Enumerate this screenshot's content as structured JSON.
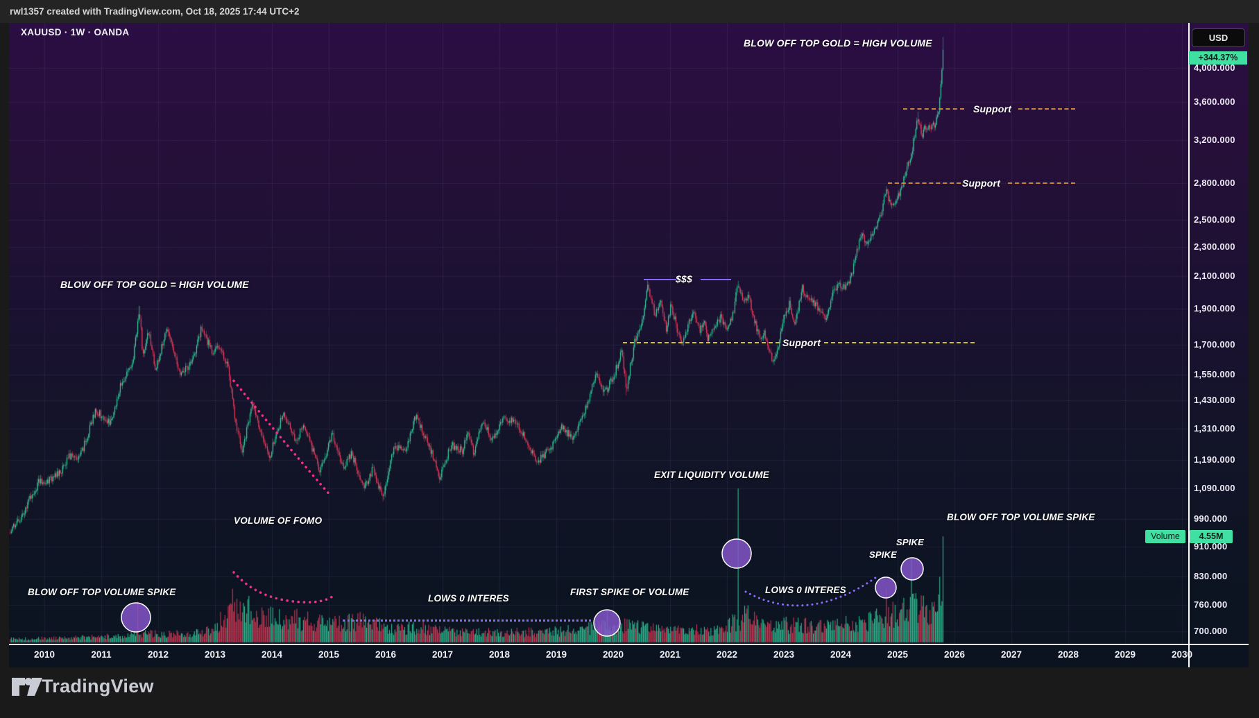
{
  "attribution": "rwl1357 created with TradingView.com, Oct 18, 2025 17:44 UTC+2",
  "symbol_header": "XAUUSD · 1W · OANDA",
  "price_axis": {
    "currency_button": "USD",
    "change_badge": "+344.37%",
    "ticks": [
      {
        "label": "4,000.000",
        "price": 4000
      },
      {
        "label": "3,600.000",
        "price": 3600
      },
      {
        "label": "3,200.000",
        "price": 3200
      },
      {
        "label": "2,800.000",
        "price": 2800
      },
      {
        "label": "2,500.000",
        "price": 2500
      },
      {
        "label": "2,300.000",
        "price": 2300
      },
      {
        "label": "2,100.000",
        "price": 2100
      },
      {
        "label": "1,900.000",
        "price": 1900
      },
      {
        "label": "1,700.000",
        "price": 1700
      },
      {
        "label": "1,550.000",
        "price": 1550
      },
      {
        "label": "1,430.000",
        "price": 1430
      },
      {
        "label": "1,310.000",
        "price": 1310
      },
      {
        "label": "1,190.000",
        "price": 1190
      },
      {
        "label": "1,090.000",
        "price": 1090
      },
      {
        "label": "990.000",
        "price": 990
      },
      {
        "label": "910.000",
        "price": 910
      },
      {
        "label": "830.000",
        "price": 830
      },
      {
        "label": "760.000",
        "price": 760
      },
      {
        "label": "700.000",
        "price": 700
      }
    ]
  },
  "volume_badge": {
    "label": "Volume",
    "value": "4.55M"
  },
  "time_axis": {
    "years": [
      2010,
      2011,
      2012,
      2013,
      2014,
      2015,
      2016,
      2017,
      2018,
      2019,
      2020,
      2021,
      2022,
      2023,
      2024,
      2025,
      2026,
      2027,
      2028,
      2029,
      2030
    ]
  },
  "annotations": {
    "blow_off_top_gold": "BLOW OFF TOP GOLD = HIGH VOLUME",
    "support": "Support",
    "dollars": "$$$",
    "exit_liquidity": "EXIT LIQUIDITY VOLUME",
    "blow_off_top_volume_spike": "BLOW OFF TOP VOLUME SPIKE",
    "volume_of_fomo": "VOLUME OF FOMO",
    "lows_0_interes": "LOWS 0 INTERES",
    "first_spike_of_volume": "FIRST SPIKE OF VOLUME",
    "spike": "SPIKE"
  },
  "footer": {
    "brand": "TradingView"
  },
  "colors": {
    "up": "#35dba4",
    "down": "#f2405f",
    "grid": "rgba(187,163,230,0.09)",
    "support_orange": "#c9873a",
    "support_yellow": "#cfc32c",
    "purple": "#8d6bfa",
    "purple_solid": "#8468fd",
    "pink": "#f52d8a",
    "circle_fill": "#8455c8",
    "badge_green": "#3fe0a1"
  },
  "chart_data": {
    "type": "candlestick",
    "symbol": "XAUUSD",
    "interval": "1W",
    "exchange": "OANDA",
    "price_scale": "log",
    "ylim": [
      660,
      4600
    ],
    "x_years": [
      2009.4,
      2025.81
    ],
    "support_levels": [
      {
        "label": "Support",
        "price": 3520,
        "from_year": 2025.1,
        "to_year": 2028.1,
        "color": "orange"
      },
      {
        "label": "Support",
        "price": 2800,
        "from_year": 2024.8,
        "to_year": 2028.1,
        "color": "orange"
      },
      {
        "label": "Support",
        "price": 1700,
        "from_year": 2020.2,
        "to_year": 2026.3,
        "color": "yellow"
      }
    ],
    "double_top_line": {
      "label": "$$$",
      "price": 2075,
      "from_year": 2020.55,
      "to_year": 2022.05
    },
    "price_anchors": [
      [
        2009.4,
        950
      ],
      [
        2009.6,
        1000
      ],
      [
        2009.9,
        1110
      ],
      [
        2010.1,
        1115
      ],
      [
        2010.3,
        1150
      ],
      [
        2010.45,
        1205
      ],
      [
        2010.62,
        1195
      ],
      [
        2010.9,
        1385
      ],
      [
        2011.05,
        1360
      ],
      [
        2011.15,
        1330
      ],
      [
        2011.35,
        1505
      ],
      [
        2011.55,
        1590
      ],
      [
        2011.67,
        1900
      ],
      [
        2011.73,
        1640
      ],
      [
        2011.83,
        1770
      ],
      [
        2011.95,
        1570
      ],
      [
        2012.1,
        1730
      ],
      [
        2012.17,
        1780
      ],
      [
        2012.38,
        1545
      ],
      [
        2012.6,
        1610
      ],
      [
        2012.76,
        1785
      ],
      [
        2012.95,
        1665
      ],
      [
        2013.1,
        1675
      ],
      [
        2013.24,
        1575
      ],
      [
        2013.32,
        1400
      ],
      [
        2013.47,
        1210
      ],
      [
        2013.65,
        1410
      ],
      [
        2013.95,
        1195
      ],
      [
        2014.2,
        1380
      ],
      [
        2014.42,
        1255
      ],
      [
        2014.55,
        1335
      ],
      [
        2014.85,
        1145
      ],
      [
        2015.06,
        1290
      ],
      [
        2015.25,
        1160
      ],
      [
        2015.4,
        1215
      ],
      [
        2015.62,
        1090
      ],
      [
        2015.78,
        1160
      ],
      [
        2015.95,
        1052
      ],
      [
        2016.15,
        1245
      ],
      [
        2016.35,
        1225
      ],
      [
        2016.52,
        1365
      ],
      [
        2016.75,
        1255
      ],
      [
        2016.95,
        1130
      ],
      [
        2017.15,
        1245
      ],
      [
        2017.35,
        1225
      ],
      [
        2017.45,
        1290
      ],
      [
        2017.55,
        1215
      ],
      [
        2017.7,
        1348
      ],
      [
        2017.88,
        1265
      ],
      [
        2018.05,
        1355
      ],
      [
        2018.3,
        1335
      ],
      [
        2018.5,
        1255
      ],
      [
        2018.65,
        1180
      ],
      [
        2018.9,
        1235
      ],
      [
        2019.1,
        1315
      ],
      [
        2019.28,
        1272
      ],
      [
        2019.45,
        1345
      ],
      [
        2019.62,
        1480
      ],
      [
        2019.7,
        1545
      ],
      [
        2019.86,
        1465
      ],
      [
        2020.02,
        1550
      ],
      [
        2020.15,
        1670
      ],
      [
        2020.23,
        1480
      ],
      [
        2020.38,
        1715
      ],
      [
        2020.5,
        1790
      ],
      [
        2020.6,
        2060
      ],
      [
        2020.73,
        1870
      ],
      [
        2020.85,
        1940
      ],
      [
        2020.93,
        1785
      ],
      [
        2021.02,
        1920
      ],
      [
        2021.2,
        1690
      ],
      [
        2021.4,
        1895
      ],
      [
        2021.52,
        1770
      ],
      [
        2021.6,
        1820
      ],
      [
        2021.66,
        1735
      ],
      [
        2021.8,
        1795
      ],
      [
        2021.9,
        1855
      ],
      [
        2021.97,
        1785
      ],
      [
        2022.1,
        1855
      ],
      [
        2022.19,
        2045
      ],
      [
        2022.3,
        1935
      ],
      [
        2022.38,
        1970
      ],
      [
        2022.52,
        1790
      ],
      [
        2022.58,
        1715
      ],
      [
        2022.66,
        1760
      ],
      [
        2022.8,
        1625
      ],
      [
        2022.88,
        1650
      ],
      [
        2023.0,
        1855
      ],
      [
        2023.1,
        1930
      ],
      [
        2023.2,
        1815
      ],
      [
        2023.32,
        2025
      ],
      [
        2023.42,
        1965
      ],
      [
        2023.58,
        1915
      ],
      [
        2023.74,
        1825
      ],
      [
        2023.86,
        1995
      ],
      [
        2023.97,
        2045
      ],
      [
        2024.08,
        2025
      ],
      [
        2024.18,
        2090
      ],
      [
        2024.28,
        2250
      ],
      [
        2024.36,
        2385
      ],
      [
        2024.46,
        2330
      ],
      [
        2024.56,
        2400
      ],
      [
        2024.68,
        2505
      ],
      [
        2024.8,
        2745
      ],
      [
        2024.88,
        2610
      ],
      [
        2024.97,
        2640
      ],
      [
        2025.06,
        2740
      ],
      [
        2025.16,
        2925
      ],
      [
        2025.24,
        3060
      ],
      [
        2025.32,
        3300
      ],
      [
        2025.36,
        3440
      ],
      [
        2025.42,
        3250
      ],
      [
        2025.5,
        3340
      ],
      [
        2025.58,
        3330
      ],
      [
        2025.66,
        3370
      ],
      [
        2025.72,
        3500
      ],
      [
        2025.76,
        3760
      ],
      [
        2025.8,
        4230
      ]
    ],
    "notable_highs": [
      [
        2011.67,
        1915
      ],
      [
        2020.6,
        2072
      ],
      [
        2022.19,
        2070
      ],
      [
        2025.36,
        3495
      ],
      [
        2025.8,
        4400
      ]
    ],
    "notable_lows": [
      [
        2015.95,
        1046
      ],
      [
        2020.23,
        1451
      ],
      [
        2022.8,
        1615
      ]
    ],
    "volume_anchors_millions": [
      [
        2009.4,
        0.16
      ],
      [
        2010.5,
        0.22
      ],
      [
        2011.3,
        0.3
      ],
      [
        2011.8,
        0.42
      ],
      [
        2012.5,
        0.38
      ],
      [
        2012.95,
        0.55
      ],
      [
        2013.25,
        1.45
      ],
      [
        2013.6,
        1.5
      ],
      [
        2013.95,
        1.25
      ],
      [
        2014.5,
        1.05
      ],
      [
        2015.0,
        0.85
      ],
      [
        2015.6,
        1.0
      ],
      [
        2016.1,
        0.62
      ],
      [
        2016.6,
        0.72
      ],
      [
        2017.2,
        0.5
      ],
      [
        2018.0,
        0.46
      ],
      [
        2018.8,
        0.5
      ],
      [
        2019.5,
        0.62
      ],
      [
        2020.0,
        0.75
      ],
      [
        2020.3,
        0.8
      ],
      [
        2021.0,
        0.55
      ],
      [
        2021.8,
        0.6
      ],
      [
        2022.1,
        0.95
      ],
      [
        2022.35,
        1.2
      ],
      [
        2022.7,
        0.85
      ],
      [
        2023.2,
        0.8
      ],
      [
        2023.8,
        0.75
      ],
      [
        2024.2,
        0.9
      ],
      [
        2024.7,
        1.15
      ],
      [
        2025.0,
        1.35
      ],
      [
        2025.3,
        1.6
      ],
      [
        2025.55,
        1.45
      ],
      [
        2025.7,
        2.1
      ],
      [
        2025.8,
        2.6
      ]
    ],
    "volume_spikes_millions": [
      [
        2011.65,
        1.75,
        "down"
      ],
      [
        2013.3,
        2.3,
        "down"
      ],
      [
        2019.9,
        1.35,
        "up"
      ],
      [
        2022.19,
        6.6,
        "up"
      ],
      [
        2024.8,
        2.3,
        "down"
      ],
      [
        2025.25,
        3.6,
        "up"
      ],
      [
        2025.8,
        4.55,
        "up"
      ]
    ],
    "current_volume_millions": 4.55,
    "change_percent": 344.37
  }
}
